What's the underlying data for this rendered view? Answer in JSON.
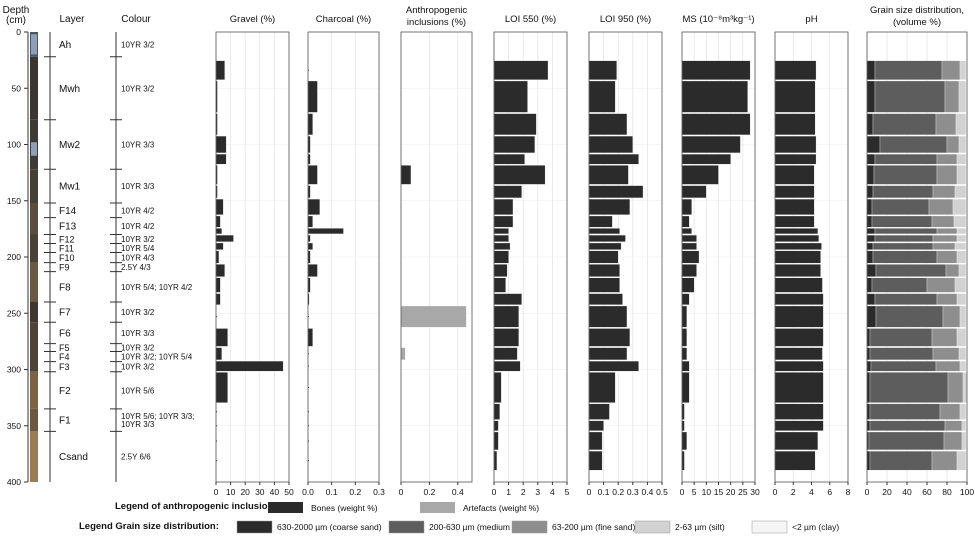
{
  "chart_data": {
    "type": "stratigraphic-profile",
    "depth_axis": {
      "title_line1": "Depth",
      "title_line2": "(cm)",
      "range": [
        0,
        400
      ],
      "ticks": [
        0,
        50,
        100,
        150,
        200,
        250,
        300,
        350,
        400
      ]
    },
    "layer_header": "Layer",
    "colour_header": "Colour",
    "layers": [
      {
        "name": "Ah",
        "top": 0,
        "bottom": 22,
        "colour": "10YR 3/2"
      },
      {
        "name": "Mwh",
        "top": 22,
        "bottom": 78,
        "colour": "10YR 3/2"
      },
      {
        "name": "Mw2",
        "top": 78,
        "bottom": 122,
        "colour": "10YR 3/3"
      },
      {
        "name": "Mw1",
        "top": 122,
        "bottom": 152,
        "colour": "10YR 3/3"
      },
      {
        "name": "F14",
        "top": 152,
        "bottom": 165,
        "colour": "10YR 4/2"
      },
      {
        "name": "F13",
        "top": 165,
        "bottom": 180,
        "colour": "10YR 4/2"
      },
      {
        "name": "F12",
        "top": 180,
        "bottom": 188,
        "colour": "10YR 3/2"
      },
      {
        "name": "F11",
        "top": 188,
        "bottom": 196,
        "colour": "10YR 5/4"
      },
      {
        "name": "F10",
        "top": 196,
        "bottom": 205,
        "colour": "10YR 4/3"
      },
      {
        "name": "F9",
        "top": 205,
        "bottom": 213,
        "colour": "2.5Y 4/3"
      },
      {
        "name": "F8",
        "top": 213,
        "bottom": 240,
        "colour": "10YR 5/4; 10YR 4/2"
      },
      {
        "name": "F7",
        "top": 240,
        "bottom": 258,
        "colour": "10YR 3/2"
      },
      {
        "name": "F6",
        "top": 258,
        "bottom": 277,
        "colour": "10YR 3/3"
      },
      {
        "name": "F5",
        "top": 277,
        "bottom": 284,
        "colour": "10YR 3/2"
      },
      {
        "name": "F4",
        "top": 284,
        "bottom": 293,
        "colour": "10YR 3/2; 10YR 5/4"
      },
      {
        "name": "F3",
        "top": 293,
        "bottom": 302,
        "colour": "10YR 3/2"
      },
      {
        "name": "F2",
        "top": 302,
        "bottom": 335,
        "colour": "10YR 5/6"
      },
      {
        "name": "F1",
        "top": 335,
        "bottom": 355,
        "colour": "10YR 5/6; 10YR 3/3;",
        "colour_line2": "10YR 3/3"
      },
      {
        "name": "Csand",
        "top": 355,
        "bottom": 400,
        "colour": "2.5Y 6/6"
      }
    ],
    "samples": [
      {
        "top": 25,
        "bottom": 43
      },
      {
        "top": 43,
        "bottom": 72
      },
      {
        "top": 72,
        "bottom": 92
      },
      {
        "top": 92,
        "bottom": 108
      },
      {
        "top": 108,
        "bottom": 118
      },
      {
        "top": 118,
        "bottom": 136
      },
      {
        "top": 136,
        "bottom": 148
      },
      {
        "top": 148,
        "bottom": 163
      },
      {
        "top": 163,
        "bottom": 174
      },
      {
        "top": 174,
        "bottom": 180
      },
      {
        "top": 180,
        "bottom": 187
      },
      {
        "top": 187,
        "bottom": 194
      },
      {
        "top": 194,
        "bottom": 206
      },
      {
        "top": 206,
        "bottom": 218
      },
      {
        "top": 218,
        "bottom": 232
      },
      {
        "top": 232,
        "bottom": 243
      },
      {
        "top": 243,
        "bottom": 263
      },
      {
        "top": 263,
        "bottom": 280
      },
      {
        "top": 280,
        "bottom": 292
      },
      {
        "top": 292,
        "bottom": 302
      },
      {
        "top": 302,
        "bottom": 330
      },
      {
        "top": 330,
        "bottom": 345
      },
      {
        "top": 345,
        "bottom": 355
      },
      {
        "top": 355,
        "bottom": 372
      },
      {
        "top": 372,
        "bottom": 390
      }
    ],
    "panels": [
      {
        "id": "gravel",
        "title": "Gravel (%)",
        "xlim": [
          0,
          50
        ],
        "ticks": [
          0,
          10,
          20,
          30,
          40,
          50
        ],
        "values": [
          6,
          1,
          1,
          7,
          7,
          1,
          1,
          5,
          3,
          4,
          12,
          5,
          2,
          6,
          3,
          3,
          0,
          8,
          4,
          46,
          8,
          0,
          0,
          0,
          0
        ]
      },
      {
        "id": "charcoal",
        "title": "Charcoal (%)",
        "xlim": [
          0,
          0.3
        ],
        "ticks": [
          "0.0",
          "0.1",
          "0.2",
          "0.3"
        ],
        "values": [
          0,
          0.04,
          0.02,
          0.01,
          0.01,
          0.04,
          0.01,
          0.05,
          0.02,
          0.15,
          0.01,
          0.02,
          0.01,
          0.04,
          0.01,
          0.005,
          0,
          0.02,
          0,
          0,
          0,
          0,
          0,
          0,
          0
        ]
      },
      {
        "id": "anthro",
        "title_line1": "Anthropogenic",
        "title_line2": "inclusions (%)",
        "xlim": [
          0,
          0.5
        ],
        "ticks": [
          "0",
          "0.2",
          "0.4"
        ],
        "series": [
          {
            "name": "Bones (weight %)",
            "color": "#2b2b2b",
            "values": [
              0,
              0,
              0,
              0,
              0,
              0.07,
              0,
              0,
              0,
              0,
              0,
              0,
              0,
              0,
              0,
              0,
              0,
              0,
              0,
              0,
              0,
              0,
              0,
              0,
              0
            ]
          },
          {
            "name": "Artefacts (weight %)",
            "color": "#a8a8a8",
            "values": [
              0,
              0,
              0,
              0,
              0,
              0,
              0,
              0,
              0,
              0,
              0,
              0,
              0,
              0,
              0,
              0,
              0.46,
              0,
              0.03,
              0,
              0,
              0,
              0,
              0,
              0
            ]
          }
        ]
      },
      {
        "id": "loi550",
        "title": "LOI 550 (%)",
        "xlim": [
          0,
          5
        ],
        "ticks": [
          0,
          1,
          2,
          3,
          4,
          5
        ],
        "values": [
          3.7,
          2.3,
          2.9,
          2.8,
          2.1,
          3.5,
          1.9,
          1.3,
          1.3,
          1.0,
          1.0,
          1.1,
          1.0,
          0.9,
          0.8,
          1.9,
          1.7,
          1.7,
          1.6,
          1.8,
          0.5,
          0.4,
          0.3,
          0.3,
          0.2
        ]
      },
      {
        "id": "loi950",
        "title": "LOI 950 (%)",
        "xlim": [
          0,
          0.5
        ],
        "ticks": [
          "0",
          "0.1",
          "0.2",
          "0.3",
          "0.4",
          "0.5"
        ],
        "values": [
          0.19,
          0.18,
          0.26,
          0.3,
          0.34,
          0.27,
          0.37,
          0.28,
          0.16,
          0.21,
          0.25,
          0.22,
          0.2,
          0.21,
          0.21,
          0.23,
          0.26,
          0.28,
          0.26,
          0.34,
          0.18,
          0.14,
          0.1,
          0.09,
          0.09
        ]
      },
      {
        "id": "ms",
        "title": "MS (10⁻⁸m³kg⁻¹)",
        "xlim": [
          0,
          30
        ],
        "ticks": [
          0,
          5,
          10,
          15,
          20,
          25,
          30
        ],
        "values": [
          28,
          27,
          28,
          24,
          20,
          15,
          10,
          4,
          3,
          4,
          6,
          6,
          7,
          6,
          5,
          3,
          2,
          2,
          2,
          3,
          3,
          1,
          1,
          2,
          1
        ]
      },
      {
        "id": "ph",
        "title": "pH",
        "xlim": [
          0,
          8
        ],
        "ticks": [
          0,
          2,
          4,
          6,
          8
        ],
        "values": [
          4.5,
          4.4,
          4.4,
          4.5,
          4.5,
          4.3,
          4.3,
          4.3,
          4.3,
          4.7,
          4.8,
          5.1,
          5.0,
          5.0,
          5.2,
          5.3,
          5.3,
          5.3,
          5.2,
          5.3,
          5.3,
          5.3,
          5.3,
          4.7,
          4.4
        ]
      },
      {
        "id": "grain",
        "title_line1": "Grain size distribution,",
        "title_line2": "(volume %)",
        "type": "stacked-bar",
        "xlim": [
          0,
          100
        ],
        "ticks": [
          0,
          20,
          40,
          60,
          80,
          100
        ],
        "classes": [
          {
            "name": "630-2000 µm (coarse sand)",
            "color": "#2b2b2b"
          },
          {
            "name": "200-630 µm (medium sand)",
            "color": "#5d5d5d"
          },
          {
            "name": "63-200 µm (fine sand)",
            "color": "#8e8e8e"
          },
          {
            "name": "2-63 µm (silt)",
            "color": "#d2d2d2"
          },
          {
            "name": "<2 µm (clay)",
            "color": "#f5f5f5"
          }
        ],
        "values": [
          [
            8,
            67,
            18,
            6,
            1
          ],
          [
            8,
            70,
            14,
            7,
            1
          ],
          [
            6,
            63,
            20,
            10,
            1
          ],
          [
            13,
            67,
            12,
            7,
            1
          ],
          [
            8,
            62,
            20,
            9,
            1
          ],
          [
            7,
            63,
            20,
            9,
            1
          ],
          [
            6,
            60,
            22,
            11,
            1
          ],
          [
            5,
            57,
            24,
            13,
            1
          ],
          [
            5,
            60,
            22,
            12,
            1
          ],
          [
            8,
            62,
            20,
            9,
            1
          ],
          [
            8,
            58,
            24,
            9,
            1
          ],
          [
            6,
            60,
            22,
            11,
            1
          ],
          [
            6,
            64,
            20,
            9,
            1
          ],
          [
            9,
            70,
            13,
            7,
            1
          ],
          [
            5,
            55,
            28,
            11,
            1
          ],
          [
            8,
            62,
            20,
            9,
            1
          ],
          [
            9,
            67,
            17,
            6,
            1
          ],
          [
            3,
            62,
            25,
            9,
            1
          ],
          [
            3,
            63,
            26,
            7,
            1
          ],
          [
            4,
            65,
            24,
            6,
            1
          ],
          [
            3,
            78,
            15,
            4,
            0
          ],
          [
            3,
            70,
            20,
            6,
            1
          ],
          [
            3,
            75,
            17,
            4,
            1
          ],
          [
            2,
            75,
            18,
            4,
            1
          ],
          [
            3,
            62,
            25,
            9,
            1
          ]
        ]
      }
    ],
    "legends": {
      "anthro": {
        "title": "Legend of anthropogenic inclusions:",
        "items": [
          {
            "name": "Bones (weight %)",
            "color": "#2b2b2b"
          },
          {
            "name": "Artefacts (weight %)",
            "color": "#a8a8a8"
          }
        ]
      },
      "grain": {
        "title": "Legend Grain size distribution:"
      }
    }
  }
}
